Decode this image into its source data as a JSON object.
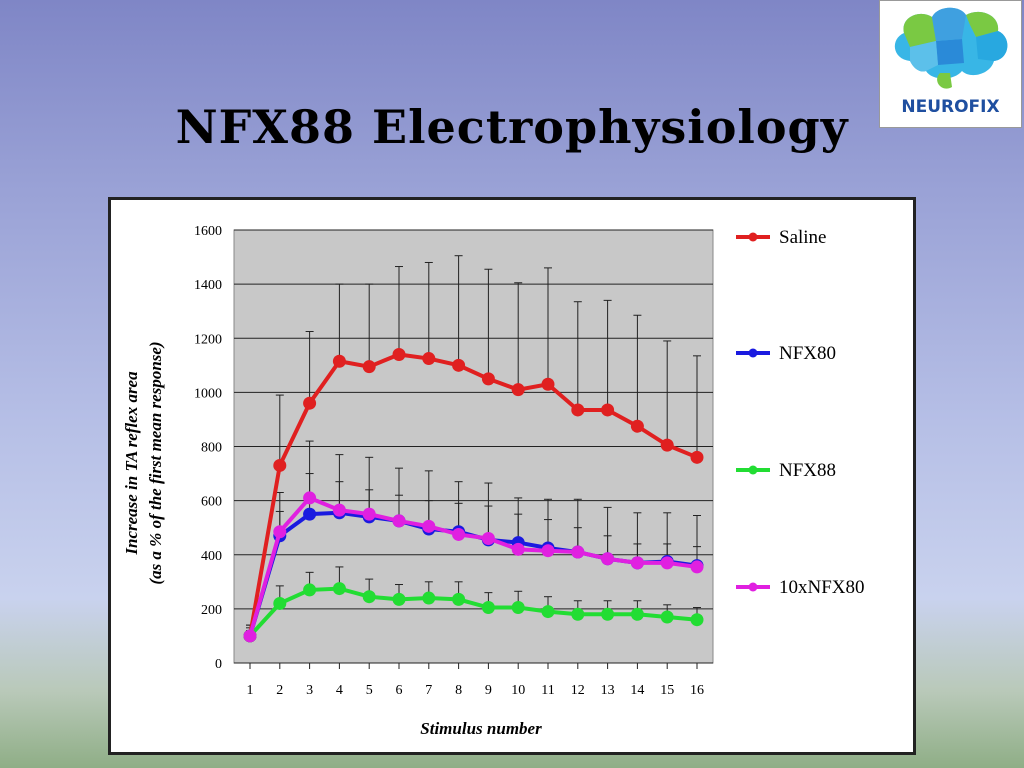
{
  "slide": {
    "title": "NFX88 Electrophysiology"
  },
  "logo": {
    "text": "NEUROFIX",
    "icon": "brain-puzzle-icon"
  },
  "chart_data": {
    "type": "line",
    "title": "",
    "xlabel": "Stimulus number",
    "ylabel_line1": "Increase in TA reflex area",
    "ylabel_line2": "(as a % of the first mean response)",
    "x": [
      1,
      2,
      3,
      4,
      5,
      6,
      7,
      8,
      9,
      10,
      11,
      12,
      13,
      14,
      15,
      16
    ],
    "xticks": [
      "1",
      "2",
      "3",
      "4",
      "5",
      "6",
      "7",
      "8",
      "9",
      "10",
      "11",
      "12",
      "13",
      "14",
      "15",
      "16"
    ],
    "yticks": [
      "0",
      "200",
      "400",
      "600",
      "800",
      "1000",
      "1200",
      "1400",
      "1600"
    ],
    "ylim": [
      0,
      1600
    ],
    "grid": true,
    "legend_position": "right",
    "series": [
      {
        "name": "Saline",
        "color": "#e02020",
        "values": [
          100,
          730,
          960,
          1115,
          1095,
          1140,
          1125,
          1100,
          1050,
          1010,
          1030,
          935,
          935,
          875,
          805,
          760
        ],
        "upper": [
          140,
          990,
          1225,
          1400,
          1400,
          1465,
          1480,
          1505,
          1455,
          1405,
          1460,
          1335,
          1340,
          1285,
          1190,
          1135
        ]
      },
      {
        "name": "NFX80",
        "color": "#1a1ae0",
        "values": [
          100,
          470,
          550,
          555,
          540,
          525,
          495,
          485,
          455,
          445,
          425,
          410,
          385,
          370,
          375,
          360
        ],
        "upper": [
          140,
          630,
          820,
          770,
          760,
          720,
          710,
          670,
          665,
          610,
          605,
          605,
          575,
          555,
          555,
          545
        ]
      },
      {
        "name": "NFX88",
        "color": "#22dd33",
        "values": [
          100,
          220,
          270,
          275,
          245,
          235,
          240,
          235,
          205,
          205,
          190,
          180,
          180,
          180,
          170,
          160
        ],
        "upper": [
          120,
          285,
          335,
          355,
          310,
          290,
          300,
          300,
          260,
          265,
          245,
          230,
          230,
          230,
          215,
          205
        ]
      },
      {
        "name": "10xNFX80",
        "color": "#e020e0",
        "values": [
          100,
          485,
          610,
          565,
          550,
          525,
          505,
          475,
          460,
          420,
          415,
          410,
          385,
          370,
          370,
          355
        ],
        "upper": [
          130,
          560,
          700,
          670,
          640,
          620,
          600,
          590,
          580,
          550,
          530,
          500,
          470,
          440,
          440,
          430
        ]
      }
    ]
  }
}
